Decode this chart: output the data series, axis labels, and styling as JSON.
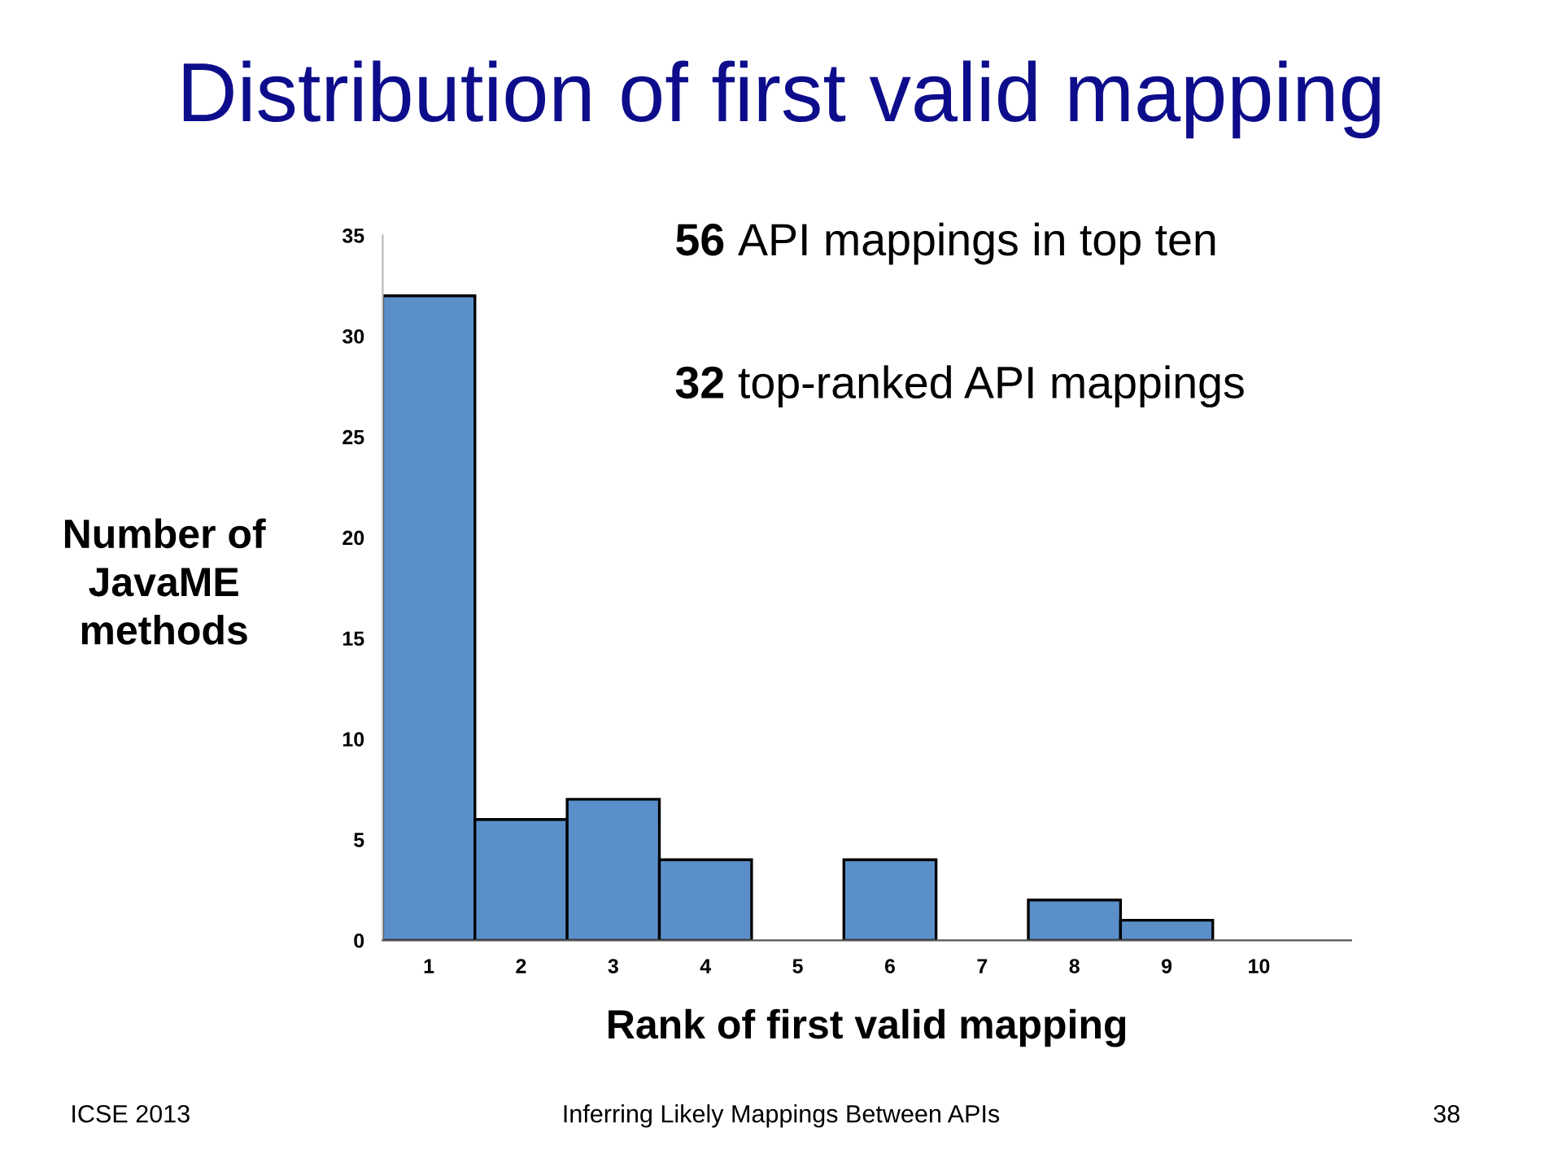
{
  "chart_data": {
    "type": "bar",
    "title": "Distribution of first valid mapping",
    "xlabel": "Rank of first valid mapping",
    "ylabel": "Number of\nJavaME\nmethods",
    "categories": [
      "1",
      "2",
      "3",
      "4",
      "5",
      "6",
      "7",
      "8",
      "9",
      "10"
    ],
    "values": [
      32,
      6,
      7,
      4,
      0,
      4,
      0,
      2,
      1,
      0
    ],
    "color": "#5b8fc9",
    "ylim": [
      0,
      35
    ],
    "yticks": [
      0,
      5,
      10,
      15,
      20,
      25,
      30,
      35
    ],
    "grid": false,
    "annotations": [
      "56 API mappings in top ten",
      "32 top-ranked API mappings",
      "ICSE 2013",
      "Inferring Likely Mappings Between APIs",
      "38"
    ]
  }
}
